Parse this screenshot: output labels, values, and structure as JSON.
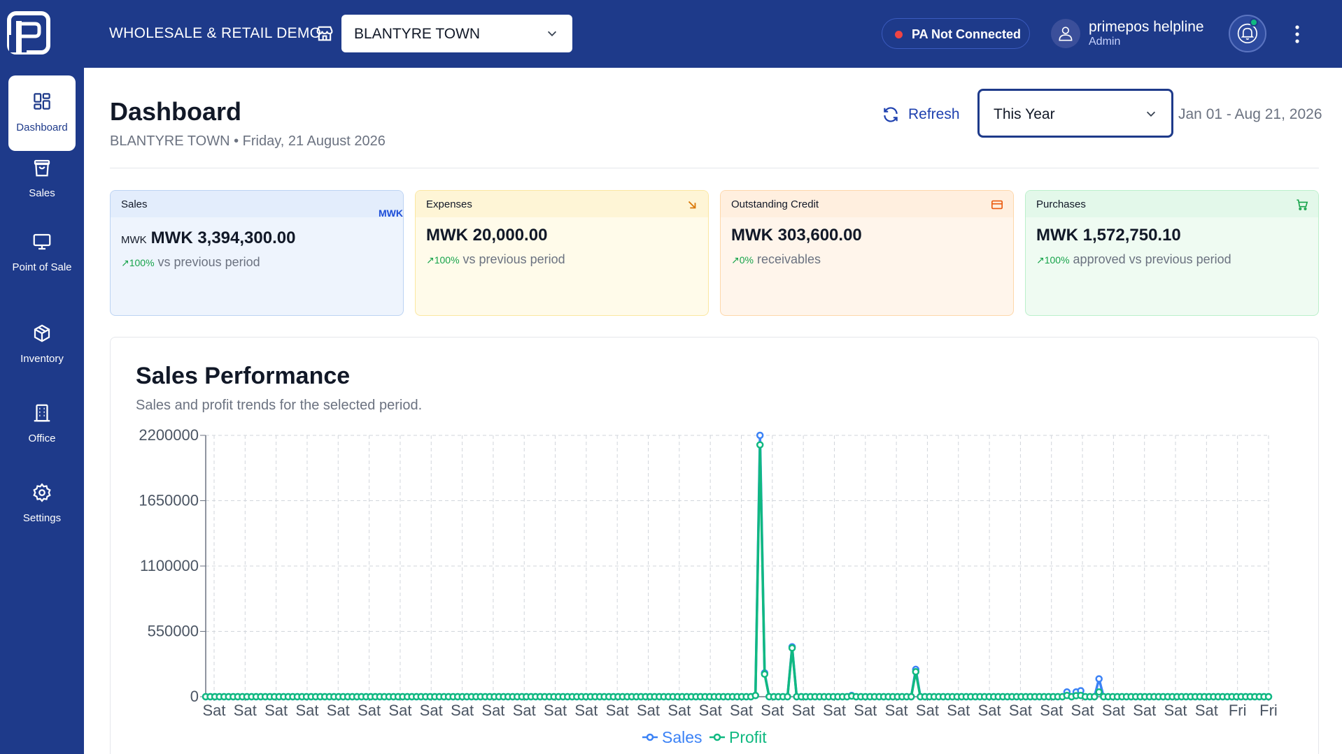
{
  "app": {
    "company": "WHOLESALE & RETAIL DEMO",
    "branch": "BLANTYRE TOWN",
    "pa_status": "PA Not Connected",
    "user_name": "primepos helpline",
    "user_role": "Admin"
  },
  "sidebar": {
    "items": [
      {
        "label": "Dashboard",
        "icon": "grid-icon",
        "active": true
      },
      {
        "label": "Sales",
        "icon": "bag-icon"
      },
      {
        "label": "Point of Sale",
        "icon": "monitor-icon"
      },
      {
        "label": "Inventory",
        "icon": "box-icon"
      },
      {
        "label": "Office",
        "icon": "building-icon"
      },
      {
        "label": "Settings",
        "icon": "gear-icon"
      }
    ]
  },
  "header": {
    "title": "Dashboard",
    "subtitle": "BLANTYRE TOWN • Friday, 21 August 2026",
    "refresh_label": "Refresh",
    "period": "This Year",
    "date_range": "Jan 01 - Aug 21, 2026"
  },
  "cards": {
    "sales": {
      "label": "Sales",
      "tag": "MWK",
      "currency": "MWK",
      "amount": "MWK 3,394,300.00",
      "pct": "100%",
      "note": " vs previous period"
    },
    "expenses": {
      "label": "Expenses",
      "amount": "MWK 20,000.00",
      "pct": "100%",
      "note": " vs previous period"
    },
    "credit": {
      "label": "Outstanding Credit",
      "amount": "MWK 303,600.00",
      "pct": "0%",
      "note": " receivables"
    },
    "purchases": {
      "label": "Purchases",
      "amount": "MWK 1,572,750.10",
      "pct": "100%",
      "note": " approved vs previous period"
    }
  },
  "chart": {
    "title": "Sales Performance",
    "subtitle": "Sales and profit trends for the selected period."
  },
  "colors": {
    "brand": "#1e3a8a",
    "sales": "#3b82f6",
    "profit": "#10b981",
    "accent": "#1e40af"
  },
  "chart_data": {
    "type": "line",
    "grid": true,
    "legend": "bottom",
    "ylim": [
      0,
      2200000
    ],
    "yticks": [
      0,
      550000,
      1100000,
      1650000,
      2200000
    ],
    "xtick_labels": [
      "Sat",
      "Sat",
      "Sat",
      "Sat",
      "Sat",
      "Sat",
      "Sat",
      "Sat",
      "Sat",
      "Sat",
      "Sat",
      "Sat",
      "Sat",
      "Sat",
      "Sat",
      "Sat",
      "Sat",
      "Sat",
      "Sat",
      "Sat",
      "Sat",
      "Sat",
      "Sat",
      "Sat",
      "Sat",
      "Sat",
      "Sat",
      "Sat",
      "Sat",
      "Sat",
      "Sat",
      "Sat",
      "Sat",
      "Fri",
      "Fri"
    ],
    "n_days": 233,
    "series": [
      {
        "name": "Sales",
        "color": "#3b82f6",
        "points": [
          [
            120,
            10000
          ],
          [
            121,
            2200000
          ],
          [
            122,
            200000
          ],
          [
            123,
            0
          ],
          [
            128,
            420000
          ],
          [
            129,
            0
          ],
          [
            141,
            10000
          ],
          [
            155,
            230000
          ],
          [
            156,
            0
          ],
          [
            188,
            40000
          ],
          [
            190,
            40000
          ],
          [
            191,
            50000
          ],
          [
            192,
            0
          ],
          [
            195,
            150000
          ],
          [
            196,
            0
          ]
        ]
      },
      {
        "name": "Profit",
        "color": "#10b981",
        "points": [
          [
            120,
            10000
          ],
          [
            121,
            2120000
          ],
          [
            122,
            190000
          ],
          [
            123,
            0
          ],
          [
            128,
            410000
          ],
          [
            129,
            0
          ],
          [
            141,
            5000
          ],
          [
            155,
            210000
          ],
          [
            156,
            0
          ],
          [
            188,
            10000
          ],
          [
            190,
            8000
          ],
          [
            191,
            10000
          ],
          [
            192,
            0
          ],
          [
            195,
            40000
          ],
          [
            196,
            0
          ]
        ]
      }
    ]
  }
}
